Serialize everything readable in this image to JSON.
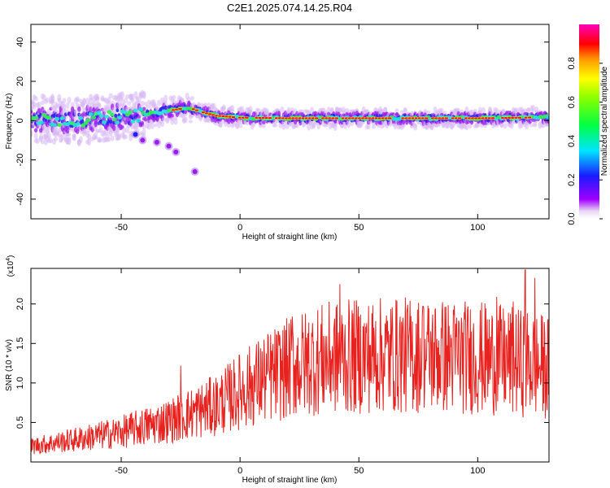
{
  "title": "C2E1.2025.074.14.25.R04",
  "colors": {
    "snr_line": "#e8231f",
    "spectrogram_core": "#e61414"
  },
  "chart_data": [
    {
      "type": "heatmap",
      "xlabel": "Height of straight line (km)",
      "ylabel": "Frequency (Hz)",
      "xlim": [
        -88,
        130
      ],
      "ylim": [
        -50,
        49
      ],
      "xticks": [
        -50,
        0,
        50,
        100
      ],
      "xtick_labels": [
        "-50",
        "0",
        "50",
        "100"
      ],
      "yticks": [
        -40,
        -20,
        0,
        20,
        40
      ],
      "ytick_labels": [
        "-40",
        "-20",
        "0",
        "20",
        "40"
      ],
      "colorbar": {
        "label": "Normalized spectral amplitude",
        "range": [
          0,
          1
        ],
        "ticks": [
          0.0,
          0.2,
          0.4,
          0.6,
          0.8
        ],
        "tick_labels": [
          "0.0",
          "0.2",
          "0.4",
          "0.6",
          "0.8"
        ],
        "colormap": "rainbow"
      },
      "ridge": {
        "x": [
          -88,
          -80,
          -70,
          -60,
          -50,
          -40,
          -30,
          -25,
          -20,
          -15,
          -10,
          0,
          20,
          40,
          60,
          80,
          100,
          120,
          130
        ],
        "y": [
          1,
          0.5,
          0,
          1,
          2,
          3,
          5,
          6,
          6,
          4,
          2.5,
          1.5,
          1.2,
          1.2,
          1.2,
          1.2,
          1.2,
          1.5,
          2
        ]
      },
      "tail": {
        "x": [
          -44,
          -41,
          -35,
          -30,
          -27,
          -19
        ],
        "y": [
          -7,
          -10,
          -11,
          -13,
          -16,
          -26
        ]
      },
      "grid": false
    },
    {
      "type": "line",
      "xlabel": "Height of straight line (km)",
      "ylabel": "SNR (10 * v/v)",
      "y_multiplier": "(x10^4)",
      "xlim": [
        -88,
        130
      ],
      "ylim": [
        0,
        2.45
      ],
      "xticks": [
        -50,
        0,
        50,
        100
      ],
      "xtick_labels": [
        "-50",
        "0",
        "50",
        "100"
      ],
      "yticks": [
        0.5,
        1.0,
        1.5,
        2.0
      ],
      "ytick_labels": [
        "0.5",
        "1.0",
        "1.5",
        "2.0"
      ],
      "trend": {
        "x": [
          -88,
          -70,
          -50,
          -30,
          -10,
          0,
          10,
          20,
          30,
          40,
          60,
          80,
          100,
          120,
          130
        ],
        "y": [
          0.2,
          0.28,
          0.38,
          0.52,
          0.72,
          0.9,
          1.05,
          1.18,
          1.28,
          1.32,
          1.35,
          1.35,
          1.32,
          1.25,
          1.2
        ]
      },
      "peaks": {
        "x": [
          -25,
          22,
          42,
          77,
          108,
          115,
          120,
          124
        ],
        "y": [
          1.22,
          1.84,
          2.25,
          1.97,
          2.09,
          2.03,
          2.43,
          2.33
        ]
      },
      "grid": false
    }
  ]
}
